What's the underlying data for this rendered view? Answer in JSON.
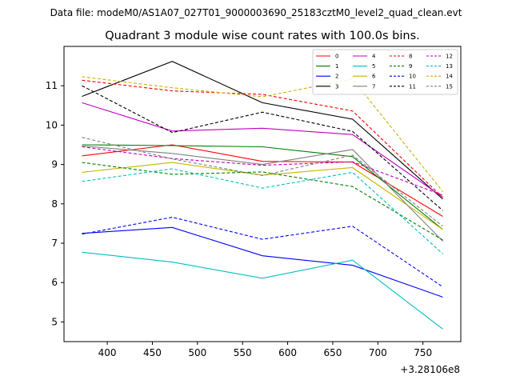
{
  "chart_data": {
    "type": "line",
    "suptitle": "Data file: modeM0/AS1A07_027T01_9000003690_25183cztM0_level2_quad_clean.evt",
    "title": "Quadrant 3 module wise count rates with 100.0s bins.",
    "xlabel": "",
    "ylabel": "",
    "x_offset_label": "+3.28106e8",
    "x": [
      372,
      472,
      572,
      672,
      772
    ],
    "xlim": [
      352,
      792
    ],
    "ylim": [
      4.5,
      12.0
    ],
    "xticks": [
      400,
      450,
      500,
      550,
      600,
      650,
      700,
      750
    ],
    "yticks": [
      5,
      6,
      7,
      8,
      9,
      10,
      11
    ],
    "grid": false,
    "legend_position": "top-right",
    "legend_columns": 4,
    "series": [
      {
        "name": "0",
        "color": "#ff0000",
        "dashed": false,
        "values": [
          9.22,
          9.5,
          9.08,
          9.06,
          7.68
        ]
      },
      {
        "name": "1",
        "color": "#008000",
        "dashed": false,
        "values": [
          9.5,
          9.48,
          9.45,
          9.2,
          7.35
        ]
      },
      {
        "name": "2",
        "color": "#0000ff",
        "dashed": false,
        "values": [
          7.25,
          7.4,
          6.68,
          6.44,
          5.63
        ]
      },
      {
        "name": "3",
        "color": "#000000",
        "dashed": false,
        "values": [
          10.73,
          11.62,
          10.57,
          10.15,
          8.12
        ]
      },
      {
        "name": "4",
        "color": "#c000c0",
        "dashed": false,
        "values": [
          10.57,
          9.85,
          9.92,
          9.76,
          8.17
        ]
      },
      {
        "name": "5",
        "color": "#00bfbf",
        "dashed": false,
        "values": [
          6.77,
          6.52,
          6.11,
          6.57,
          4.82
        ]
      },
      {
        "name": "6",
        "color": "#c8b400",
        "dashed": false,
        "values": [
          8.8,
          9.05,
          8.73,
          8.92,
          7.35
        ]
      },
      {
        "name": "7",
        "color": "#808080",
        "dashed": false,
        "values": [
          9.47,
          9.28,
          9.0,
          9.38,
          7.05
        ]
      },
      {
        "name": "8",
        "color": "#ff0000",
        "dashed": true,
        "values": [
          11.14,
          10.87,
          10.78,
          10.36,
          8.16
        ]
      },
      {
        "name": "9",
        "color": "#008000",
        "dashed": true,
        "values": [
          9.05,
          8.75,
          8.81,
          8.44,
          7.08
        ]
      },
      {
        "name": "10",
        "color": "#0000ff",
        "dashed": true,
        "values": [
          7.23,
          7.66,
          7.1,
          7.43,
          5.89
        ]
      },
      {
        "name": "11",
        "color": "#000000",
        "dashed": true,
        "values": [
          11.0,
          9.81,
          10.33,
          9.84,
          7.83
        ]
      },
      {
        "name": "12",
        "color": "#c000c0",
        "dashed": true,
        "values": [
          9.45,
          9.15,
          8.98,
          9.07,
          8.22
        ]
      },
      {
        "name": "13",
        "color": "#00bfbf",
        "dashed": true,
        "values": [
          8.57,
          8.89,
          8.4,
          8.8,
          6.73
        ]
      },
      {
        "name": "14",
        "color": "#c8b400",
        "dashed": true,
        "values": [
          11.23,
          10.95,
          10.72,
          11.17,
          8.31
        ]
      },
      {
        "name": "15",
        "color": "#808080",
        "dashed": true,
        "values": [
          9.69,
          9.14,
          8.72,
          9.24,
          7.43
        ]
      }
    ]
  }
}
